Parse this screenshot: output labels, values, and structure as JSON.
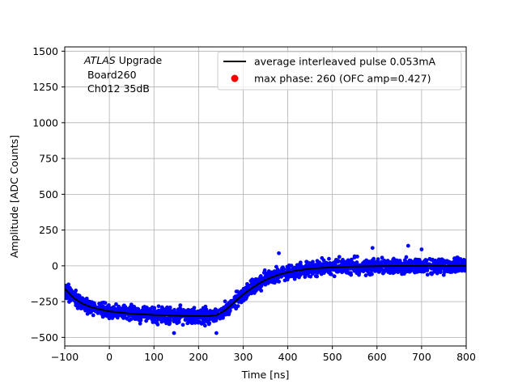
{
  "chart_data": {
    "type": "scatter",
    "xlabel": "Time [ns]",
    "ylabel": "Amplitude [ADC Counts]",
    "xlim": [
      -100,
      800
    ],
    "ylim": [
      -560,
      1530
    ],
    "x_ticks": [
      -100,
      0,
      100,
      200,
      300,
      400,
      500,
      600,
      700,
      800
    ],
    "y_ticks": [
      -500,
      -250,
      0,
      250,
      500,
      750,
      1000,
      1250,
      1500
    ],
    "grid": true,
    "legend_placement": "top-right",
    "annotation": {
      "italic": "ATLAS",
      "line1_rest": " Upgrade",
      "line2": " Board260",
      "line3": " Ch012 35dB"
    },
    "series": [
      {
        "name": "average interleaved pulse 0.053mA",
        "kind": "line",
        "color": "#000000",
        "x": [
          -100,
          -80,
          -60,
          -40,
          -20,
          0,
          20,
          40,
          60,
          80,
          100,
          120,
          140,
          160,
          180,
          200,
          220,
          240,
          260,
          280,
          300,
          320,
          340,
          360,
          380,
          400,
          420,
          450,
          500,
          550,
          600,
          650,
          700,
          750,
          800
        ],
        "y": [
          -160,
          -225,
          -265,
          -290,
          -305,
          -318,
          -325,
          -332,
          -337,
          -340,
          -343,
          -345,
          -347,
          -349,
          -350,
          -351,
          -352,
          -345,
          -310,
          -255,
          -200,
          -155,
          -115,
          -85,
          -62,
          -45,
          -33,
          -20,
          -10,
          -5,
          -2,
          -1,
          0,
          0,
          0
        ]
      },
      {
        "name": "max phase: 260 (OFC amp=0.427)",
        "kind": "marker",
        "color": "#ff0000"
      }
    ],
    "scatter_band": {
      "color": "#0000ff",
      "spread": 30,
      "note_scatter": "blue samples around the average pulse"
    }
  }
}
